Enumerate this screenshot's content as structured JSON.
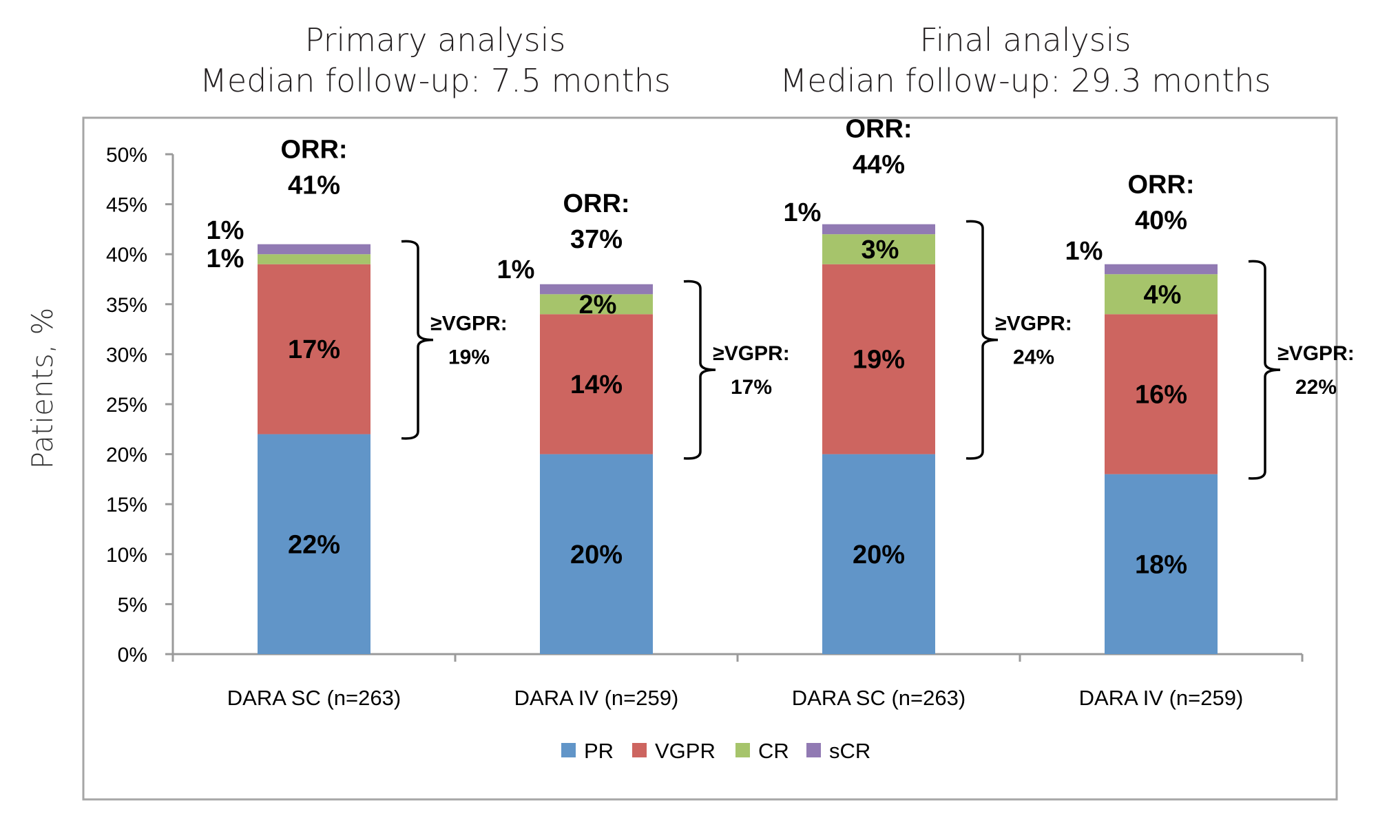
{
  "titles": {
    "left_line1": "Primary analysis",
    "left_line2": "Median follow-up: 7.5 months",
    "right_line1": "Final analysis",
    "right_line2": "Median follow-up: 29.3 months"
  },
  "chart_data": {
    "type": "bar",
    "stacked": true,
    "ylabel": "Patients, %",
    "xlabel": "",
    "ylim": [
      0,
      50
    ],
    "yticks": [
      "0%",
      "5%",
      "10%",
      "15%",
      "20%",
      "25%",
      "30%",
      "35%",
      "40%",
      "45%",
      "50%"
    ],
    "categories": [
      "DARA SC (n=263)",
      "DARA IV (n=259)",
      "DARA SC (n=263)",
      "DARA IV (n=259)"
    ],
    "groups": [
      "Primary analysis",
      "Primary analysis",
      "Final analysis",
      "Final analysis"
    ],
    "series": [
      {
        "name": "PR",
        "color": "#6195C8",
        "values": [
          22,
          20,
          20,
          18
        ]
      },
      {
        "name": "VGPR",
        "color": "#CD6560",
        "values": [
          17,
          14,
          19,
          16
        ]
      },
      {
        "name": "CR",
        "color": "#A6C46B",
        "values": [
          1,
          2,
          3,
          4
        ]
      },
      {
        "name": "sCR",
        "color": "#917AB3",
        "values": [
          1,
          1,
          1,
          1
        ]
      }
    ],
    "segment_labels": [
      {
        "PR": "22%",
        "VGPR": "17%",
        "CR": "1%",
        "sCR": "1%"
      },
      {
        "PR": "20%",
        "VGPR": "14%",
        "CR": "2%",
        "sCR": "1%"
      },
      {
        "PR": "20%",
        "VGPR": "19%",
        "CR": "3%",
        "sCR": "1%"
      },
      {
        "PR": "18%",
        "VGPR": "16%",
        "CR": "4%",
        "sCR": "1%"
      }
    ],
    "orr_label": "ORR:",
    "orr": [
      "41%",
      "37%",
      "44%",
      "40%"
    ],
    "vgpr_label": "≥VGPR:",
    "vgpr_or_better": [
      "19%",
      "17%",
      "24%",
      "22%"
    ],
    "legend": [
      "PR",
      "VGPR",
      "CR",
      "sCR"
    ],
    "legend_position": "bottom",
    "grid": false
  }
}
